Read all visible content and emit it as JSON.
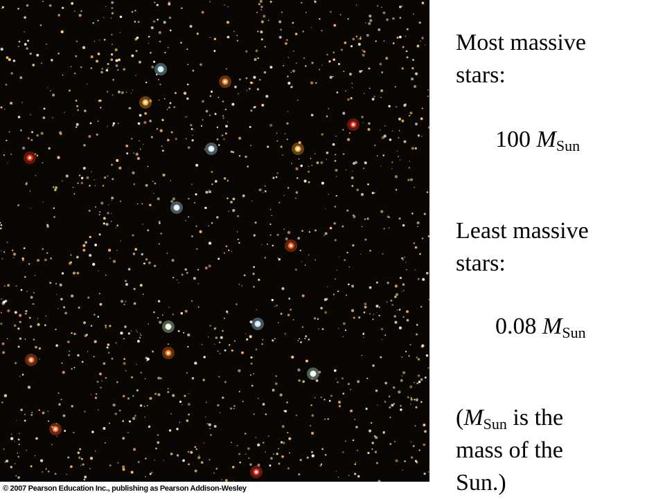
{
  "blocks": [
    {
      "label": "Most massive stars:",
      "value": "100",
      "symbol": "M",
      "subscript": "Sun"
    },
    {
      "label": "Least massive stars:",
      "value": "0.08",
      "symbol": "M",
      "subscript": "Sun"
    }
  ],
  "note": {
    "open": "(",
    "symbol": "M",
    "subscript": "Sun",
    "text": "is the mass of the Sun.)"
  },
  "credit": "© 2007 Pearson Education Inc., publishing as Pearson Addison-Wesley"
}
